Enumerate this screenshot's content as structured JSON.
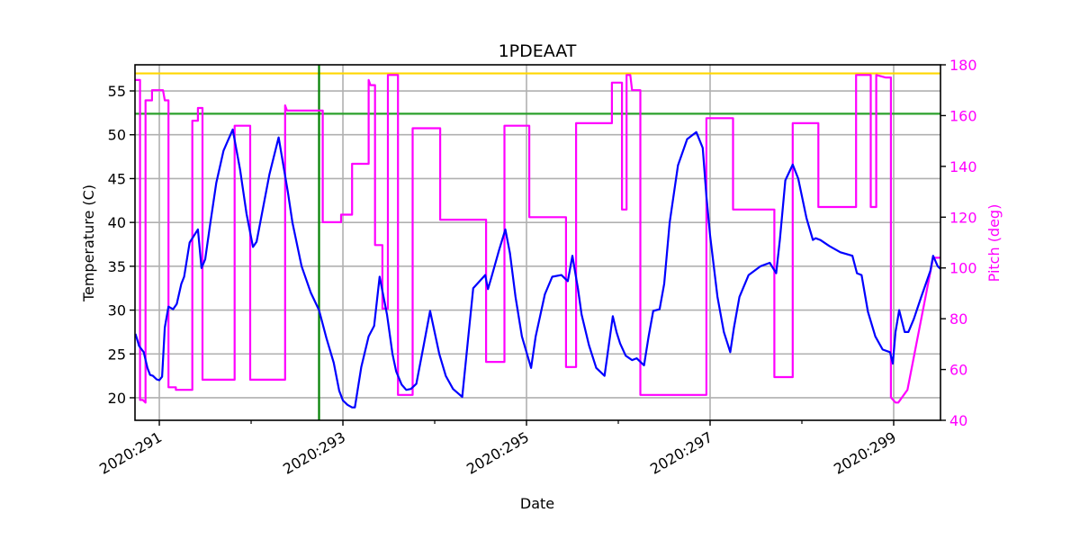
{
  "chart_data": {
    "type": "line",
    "title": "1PDEAAT",
    "xlabel": "Date",
    "ylabel": "Temperature (C)",
    "y2label": "Pitch (deg)",
    "xlim": [
      290.735,
      299.51
    ],
    "ylim": [
      17.43,
      57.98
    ],
    "y2lim": [
      40,
      180
    ],
    "grid": true,
    "x_ticks": [
      291,
      293,
      295,
      297,
      299
    ],
    "x_minor_ticks": [
      292,
      294,
      296,
      298
    ],
    "x_tick_labels": [
      "2020:291",
      "2020:293",
      "2020:295",
      "2020:297",
      "2020:299"
    ],
    "y_ticks": [
      20,
      25,
      30,
      35,
      40,
      45,
      50,
      55
    ],
    "y2_ticks": [
      40,
      60,
      80,
      100,
      120,
      140,
      160,
      180
    ],
    "reference_lines": [
      {
        "name": "yellow-limit",
        "orientation": "horizontal",
        "axis": "left",
        "value": 57.0,
        "color": "#ffd700"
      },
      {
        "name": "green-limit",
        "orientation": "horizontal",
        "axis": "left",
        "value": 52.4,
        "color": "#2ca02c"
      },
      {
        "name": "green-time-marker",
        "orientation": "vertical",
        "value": 292.74,
        "color": "#008000"
      }
    ],
    "series": [
      {
        "name": "1PDEAAT temperature",
        "axis": "left",
        "color": "#0000ff",
        "x": [
          290.74,
          290.78,
          290.83,
          290.87,
          290.9,
          290.93,
          290.97,
          291.0,
          291.03,
          291.06,
          291.1,
          291.15,
          291.19,
          291.24,
          291.27,
          291.33,
          291.42,
          291.46,
          291.5,
          291.55,
          291.62,
          291.7,
          291.8,
          291.88,
          291.95,
          292.02,
          292.06,
          292.1,
          292.2,
          292.3,
          292.4,
          292.45,
          292.55,
          292.65,
          292.74,
          292.82,
          292.9,
          292.96,
          293.0,
          293.05,
          293.1,
          293.13,
          293.2,
          293.28,
          293.34,
          293.4,
          293.48,
          293.54,
          293.58,
          293.64,
          293.69,
          293.74,
          293.8,
          293.88,
          293.95,
          294.05,
          294.12,
          294.2,
          294.3,
          294.42,
          294.55,
          294.58,
          294.62,
          294.7,
          294.77,
          294.82,
          294.88,
          294.95,
          295.05,
          295.1,
          295.2,
          295.28,
          295.38,
          295.45,
          295.5,
          295.56,
          295.6,
          295.68,
          295.76,
          295.85,
          295.94,
          295.98,
          296.02,
          296.08,
          296.15,
          296.2,
          296.28,
          296.33,
          296.38,
          296.45,
          296.5,
          296.56,
          296.65,
          296.75,
          296.85,
          296.92,
          296.96,
          297.0,
          297.08,
          297.15,
          297.22,
          297.26,
          297.32,
          297.42,
          297.55,
          297.65,
          297.72,
          297.76,
          297.82,
          297.9,
          297.96,
          298.05,
          298.12,
          298.15,
          298.2,
          298.3,
          298.42,
          298.55,
          298.6,
          298.65,
          298.72,
          298.8,
          298.88,
          298.96,
          298.99,
          299.02,
          299.06,
          299.12,
          299.16,
          299.22,
          299.3,
          299.4,
          299.43,
          299.48,
          299.51
        ],
        "values": [
          27.3,
          25.9,
          25.2,
          23.4,
          22.6,
          22.5,
          22.1,
          22.0,
          22.4,
          28.0,
          30.4,
          30.1,
          30.7,
          33.0,
          33.8,
          37.7,
          39.2,
          34.8,
          35.8,
          39.5,
          44.5,
          48.2,
          50.6,
          46.0,
          41.0,
          37.2,
          37.8,
          40.0,
          45.5,
          49.7,
          43.5,
          40.0,
          35.0,
          32.0,
          30.0,
          26.8,
          24.0,
          20.8,
          19.7,
          19.2,
          18.9,
          18.9,
          23.5,
          27.0,
          28.2,
          33.8,
          29.5,
          25.0,
          23.0,
          21.5,
          20.9,
          21.0,
          21.6,
          26.0,
          29.9,
          25.0,
          22.5,
          21.0,
          20.1,
          32.5,
          34.0,
          32.4,
          33.8,
          36.8,
          39.2,
          36.5,
          31.5,
          27.0,
          23.4,
          27.0,
          31.8,
          33.8,
          34.0,
          33.3,
          36.2,
          32.5,
          29.5,
          26.0,
          23.4,
          22.5,
          29.3,
          27.5,
          26.2,
          24.8,
          24.3,
          24.5,
          23.7,
          27.0,
          29.9,
          30.1,
          33.0,
          40.0,
          46.5,
          49.5,
          50.3,
          48.5,
          43.0,
          38.5,
          31.5,
          27.5,
          25.2,
          28.0,
          31.5,
          34.0,
          35.0,
          35.4,
          34.2,
          38.0,
          44.8,
          46.6,
          45.0,
          40.5,
          38.0,
          38.2,
          38.0,
          37.3,
          36.6,
          36.2,
          34.2,
          34.0,
          29.8,
          27.0,
          25.5,
          25.2,
          23.9,
          27.5,
          30.0,
          27.5,
          27.5,
          29.0,
          31.5,
          34.5,
          36.2,
          35.0,
          34.7
        ]
      },
      {
        "name": "Pitch",
        "axis": "right",
        "color": "#ff00ff",
        "x": [
          290.74,
          290.79,
          290.79,
          290.82,
          290.85,
          290.85,
          290.92,
          290.92,
          291.02,
          291.04,
          291.06,
          291.08,
          291.09,
          291.1,
          291.1,
          291.18,
          291.18,
          291.36,
          291.36,
          291.42,
          291.42,
          291.45,
          291.46,
          291.47,
          291.47,
          291.82,
          291.82,
          291.99,
          291.99,
          292.37,
          292.37,
          292.39,
          292.4,
          292.78,
          292.78,
          292.98,
          292.98,
          293.1,
          293.1,
          293.15,
          293.15,
          293.28,
          293.28,
          293.3,
          293.31,
          293.34,
          293.35,
          293.35,
          293.43,
          293.43,
          293.49,
          293.49,
          293.6,
          293.6,
          293.63,
          293.63,
          293.76,
          293.76,
          294.06,
          294.06,
          294.56,
          294.56,
          294.76,
          294.76,
          295.03,
          295.03,
          295.43,
          295.43,
          295.54,
          295.54,
          295.93,
          295.93,
          296.04,
          296.04,
          296.09,
          296.09,
          296.13,
          296.15,
          296.18,
          296.24,
          296.24,
          296.41,
          296.41,
          296.96,
          296.96,
          297.0,
          297.0,
          297.25,
          297.25,
          297.7,
          297.7,
          297.9,
          297.9,
          298.18,
          298.18,
          298.59,
          298.59,
          298.75,
          298.75,
          298.81,
          298.81,
          298.91,
          298.92,
          298.97,
          298.97,
          299.02,
          299.03,
          299.05,
          299.15,
          299.15,
          299.43,
          299.43,
          299.51
        ],
        "values": [
          174,
          174,
          48,
          48,
          47,
          166,
          166,
          170,
          170,
          170,
          166,
          166,
          166,
          166,
          53,
          53,
          52,
          52,
          158,
          158,
          163,
          163,
          163,
          163,
          56,
          56,
          156,
          156,
          56,
          56,
          164,
          162,
          162,
          162,
          118,
          118,
          121,
          121,
          141,
          141,
          141,
          141,
          174,
          172,
          172,
          172,
          172,
          109,
          109,
          84,
          84,
          176,
          176,
          50,
          50,
          50,
          50,
          155,
          155,
          119,
          119,
          63,
          63,
          156,
          156,
          120,
          120,
          61,
          61,
          157,
          157,
          173,
          173,
          123,
          123,
          176,
          176,
          170,
          170,
          170,
          50,
          50,
          50,
          50,
          159,
          159,
          159,
          159,
          123,
          123,
          57,
          57,
          157,
          157,
          124,
          124,
          176,
          176,
          124,
          124,
          176,
          175,
          175,
          175,
          49,
          47,
          47,
          47,
          52,
          52,
          104,
          104,
          104
        ]
      }
    ]
  }
}
